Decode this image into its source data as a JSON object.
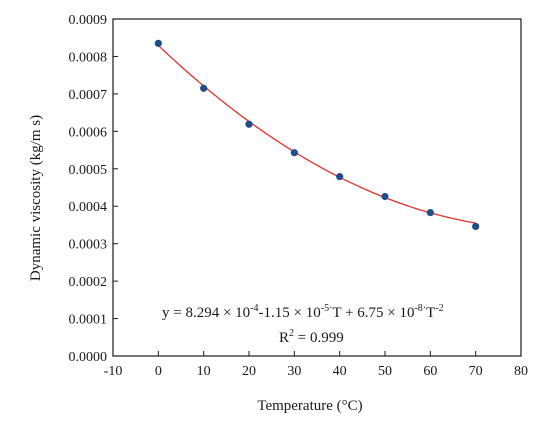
{
  "chart_data": {
    "type": "scatter",
    "xlabel": "Temperature (°C)",
    "ylabel": "Dynamic viscosity (kg/m s)",
    "xlim": [
      -10,
      80
    ],
    "ylim": [
      0,
      0.0009
    ],
    "x_ticks": [
      "-10",
      "0",
      "10",
      "20",
      "30",
      "40",
      "50",
      "60",
      "70",
      "80"
    ],
    "y_ticks": [
      "0.0000",
      "0.0001",
      "0.0002",
      "0.0003",
      "0.0004",
      "0.0005",
      "0.0006",
      "0.0007",
      "0.0008",
      "0.0009"
    ],
    "grid": false,
    "points": {
      "x": [
        0,
        10,
        20,
        30,
        40,
        50,
        60,
        70
      ],
      "y": [
        0.000835,
        0.000715,
        0.000619,
        0.000543,
        0.000479,
        0.000426,
        0.000383,
        0.000346
      ]
    },
    "fit": {
      "a": 0.0008294,
      "b": -1.15e-05,
      "c": 6.75e-08,
      "x_range": [
        0,
        70
      ]
    },
    "colors": {
      "points": "#1f4e8c",
      "fit": "#e0302a",
      "axis": "#1a1a1a"
    },
    "annotation": {
      "eq_start": "y = 8.294 × 10",
      "eq_exp1": "-4",
      "eq_mid1": "-1.15 × 10",
      "eq_exp2": "-5·",
      "eq_mid2": "T + 6.75 × 10",
      "eq_exp3": "-8·",
      "eq_end": "T",
      "eq_exp4": "-2",
      "r2_label": "R",
      "r2_exp": "2",
      "r2_value": " = 0.999"
    }
  }
}
